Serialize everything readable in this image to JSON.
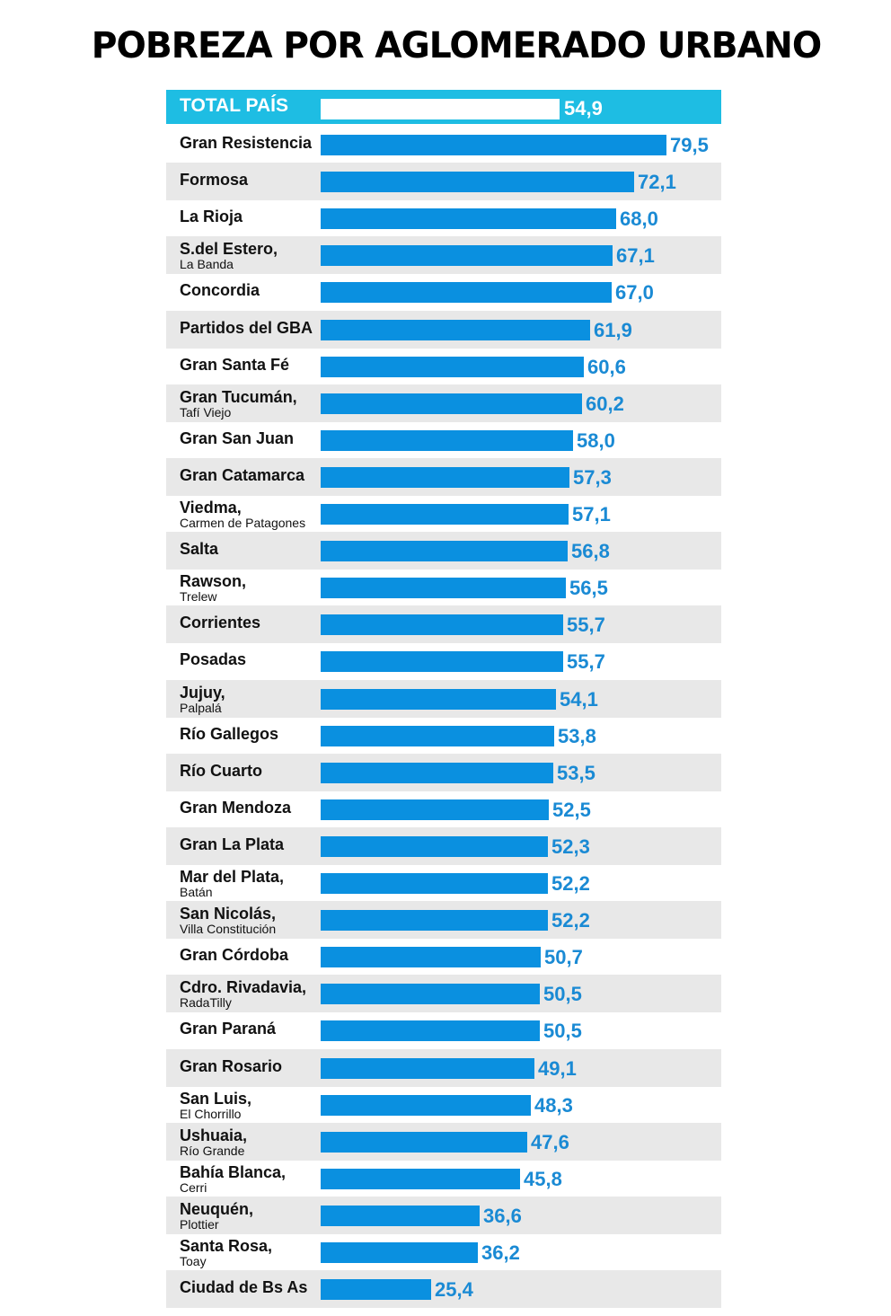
{
  "title": "POBREZA POR AGLOMERADO URBANO",
  "colors": {
    "total_band": "#1ebde3",
    "bar": "#0a90e0",
    "value_text": "#1a8ad4",
    "stripe": "#e8e8e8"
  },
  "chart_data": {
    "type": "bar",
    "orientation": "horizontal",
    "title": "POBREZA POR AGLOMERADO URBANO",
    "xlabel": "",
    "ylabel": "",
    "xlim": [
      0,
      80
    ],
    "grid": false,
    "total": {
      "label": "TOTAL PAÍS",
      "value": 54.9,
      "value_label": "54,9"
    },
    "categories": [
      {
        "name": "Gran Resistencia",
        "sub": "",
        "value": 79.5,
        "value_label": "79,5"
      },
      {
        "name": "Formosa",
        "sub": "",
        "value": 72.1,
        "value_label": "72,1"
      },
      {
        "name": "La Rioja",
        "sub": "",
        "value": 68.0,
        "value_label": "68,0"
      },
      {
        "name": "S.del Estero,",
        "sub": "La Banda",
        "value": 67.1,
        "value_label": "67,1"
      },
      {
        "name": "Concordia",
        "sub": "",
        "value": 67.0,
        "value_label": "67,0"
      },
      {
        "name": "Partidos del GBA",
        "sub": "",
        "value": 61.9,
        "value_label": "61,9"
      },
      {
        "name": "Gran Santa Fé",
        "sub": "",
        "value": 60.6,
        "value_label": "60,6"
      },
      {
        "name": "Gran Tucumán,",
        "sub": "Tafí Viejo",
        "value": 60.2,
        "value_label": "60,2"
      },
      {
        "name": "Gran San Juan",
        "sub": "",
        "value": 58.0,
        "value_label": "58,0"
      },
      {
        "name": "Gran Catamarca",
        "sub": "",
        "value": 57.3,
        "value_label": "57,3"
      },
      {
        "name": "Viedma,",
        "sub": "Carmen de Patagones",
        "value": 57.1,
        "value_label": "57,1"
      },
      {
        "name": "Salta",
        "sub": "",
        "value": 56.8,
        "value_label": "56,8"
      },
      {
        "name": "Rawson,",
        "sub": "Trelew",
        "value": 56.5,
        "value_label": "56,5"
      },
      {
        "name": "Corrientes",
        "sub": "",
        "value": 55.7,
        "value_label": "55,7"
      },
      {
        "name": "Posadas",
        "sub": "",
        "value": 55.7,
        "value_label": "55,7"
      },
      {
        "name": "Jujuy,",
        "sub": "Palpalá",
        "value": 54.1,
        "value_label": "54,1"
      },
      {
        "name": "Río Gallegos",
        "sub": "",
        "value": 53.8,
        "value_label": "53,8"
      },
      {
        "name": "Río Cuarto",
        "sub": "",
        "value": 53.5,
        "value_label": "53,5"
      },
      {
        "name": "Gran Mendoza",
        "sub": "",
        "value": 52.5,
        "value_label": "52,5"
      },
      {
        "name": "Gran La Plata",
        "sub": "",
        "value": 52.3,
        "value_label": "52,3"
      },
      {
        "name": "Mar del Plata,",
        "sub": "Batán",
        "value": 52.2,
        "value_label": "52,2"
      },
      {
        "name": "San Nicolás,",
        "sub": "Villa Constitución",
        "value": 52.2,
        "value_label": "52,2"
      },
      {
        "name": "Gran Córdoba",
        "sub": "",
        "value": 50.7,
        "value_label": "50,7"
      },
      {
        "name": "Cdro. Rivadavia,",
        "sub": "RadaTilly",
        "value": 50.5,
        "value_label": "50,5"
      },
      {
        "name": "Gran Paraná",
        "sub": "",
        "value": 50.5,
        "value_label": "50,5"
      },
      {
        "name": "Gran Rosario",
        "sub": "",
        "value": 49.1,
        "value_label": "49,1"
      },
      {
        "name": "San Luis,",
        "sub": "El Chorrillo",
        "value": 48.3,
        "value_label": "48,3"
      },
      {
        "name": "Ushuaia,",
        "sub": "Río Grande",
        "value": 47.6,
        "value_label": "47,6"
      },
      {
        "name": "Bahía Blanca,",
        "sub": "Cerri",
        "value": 45.8,
        "value_label": "45,8"
      },
      {
        "name": "Neuquén,",
        "sub": "Plottier",
        "value": 36.6,
        "value_label": "36,6"
      },
      {
        "name": "Santa Rosa,",
        "sub": "Toay",
        "value": 36.2,
        "value_label": "36,2"
      },
      {
        "name": "Ciudad de Bs As",
        "sub": "",
        "value": 25.4,
        "value_label": "25,4"
      }
    ]
  }
}
